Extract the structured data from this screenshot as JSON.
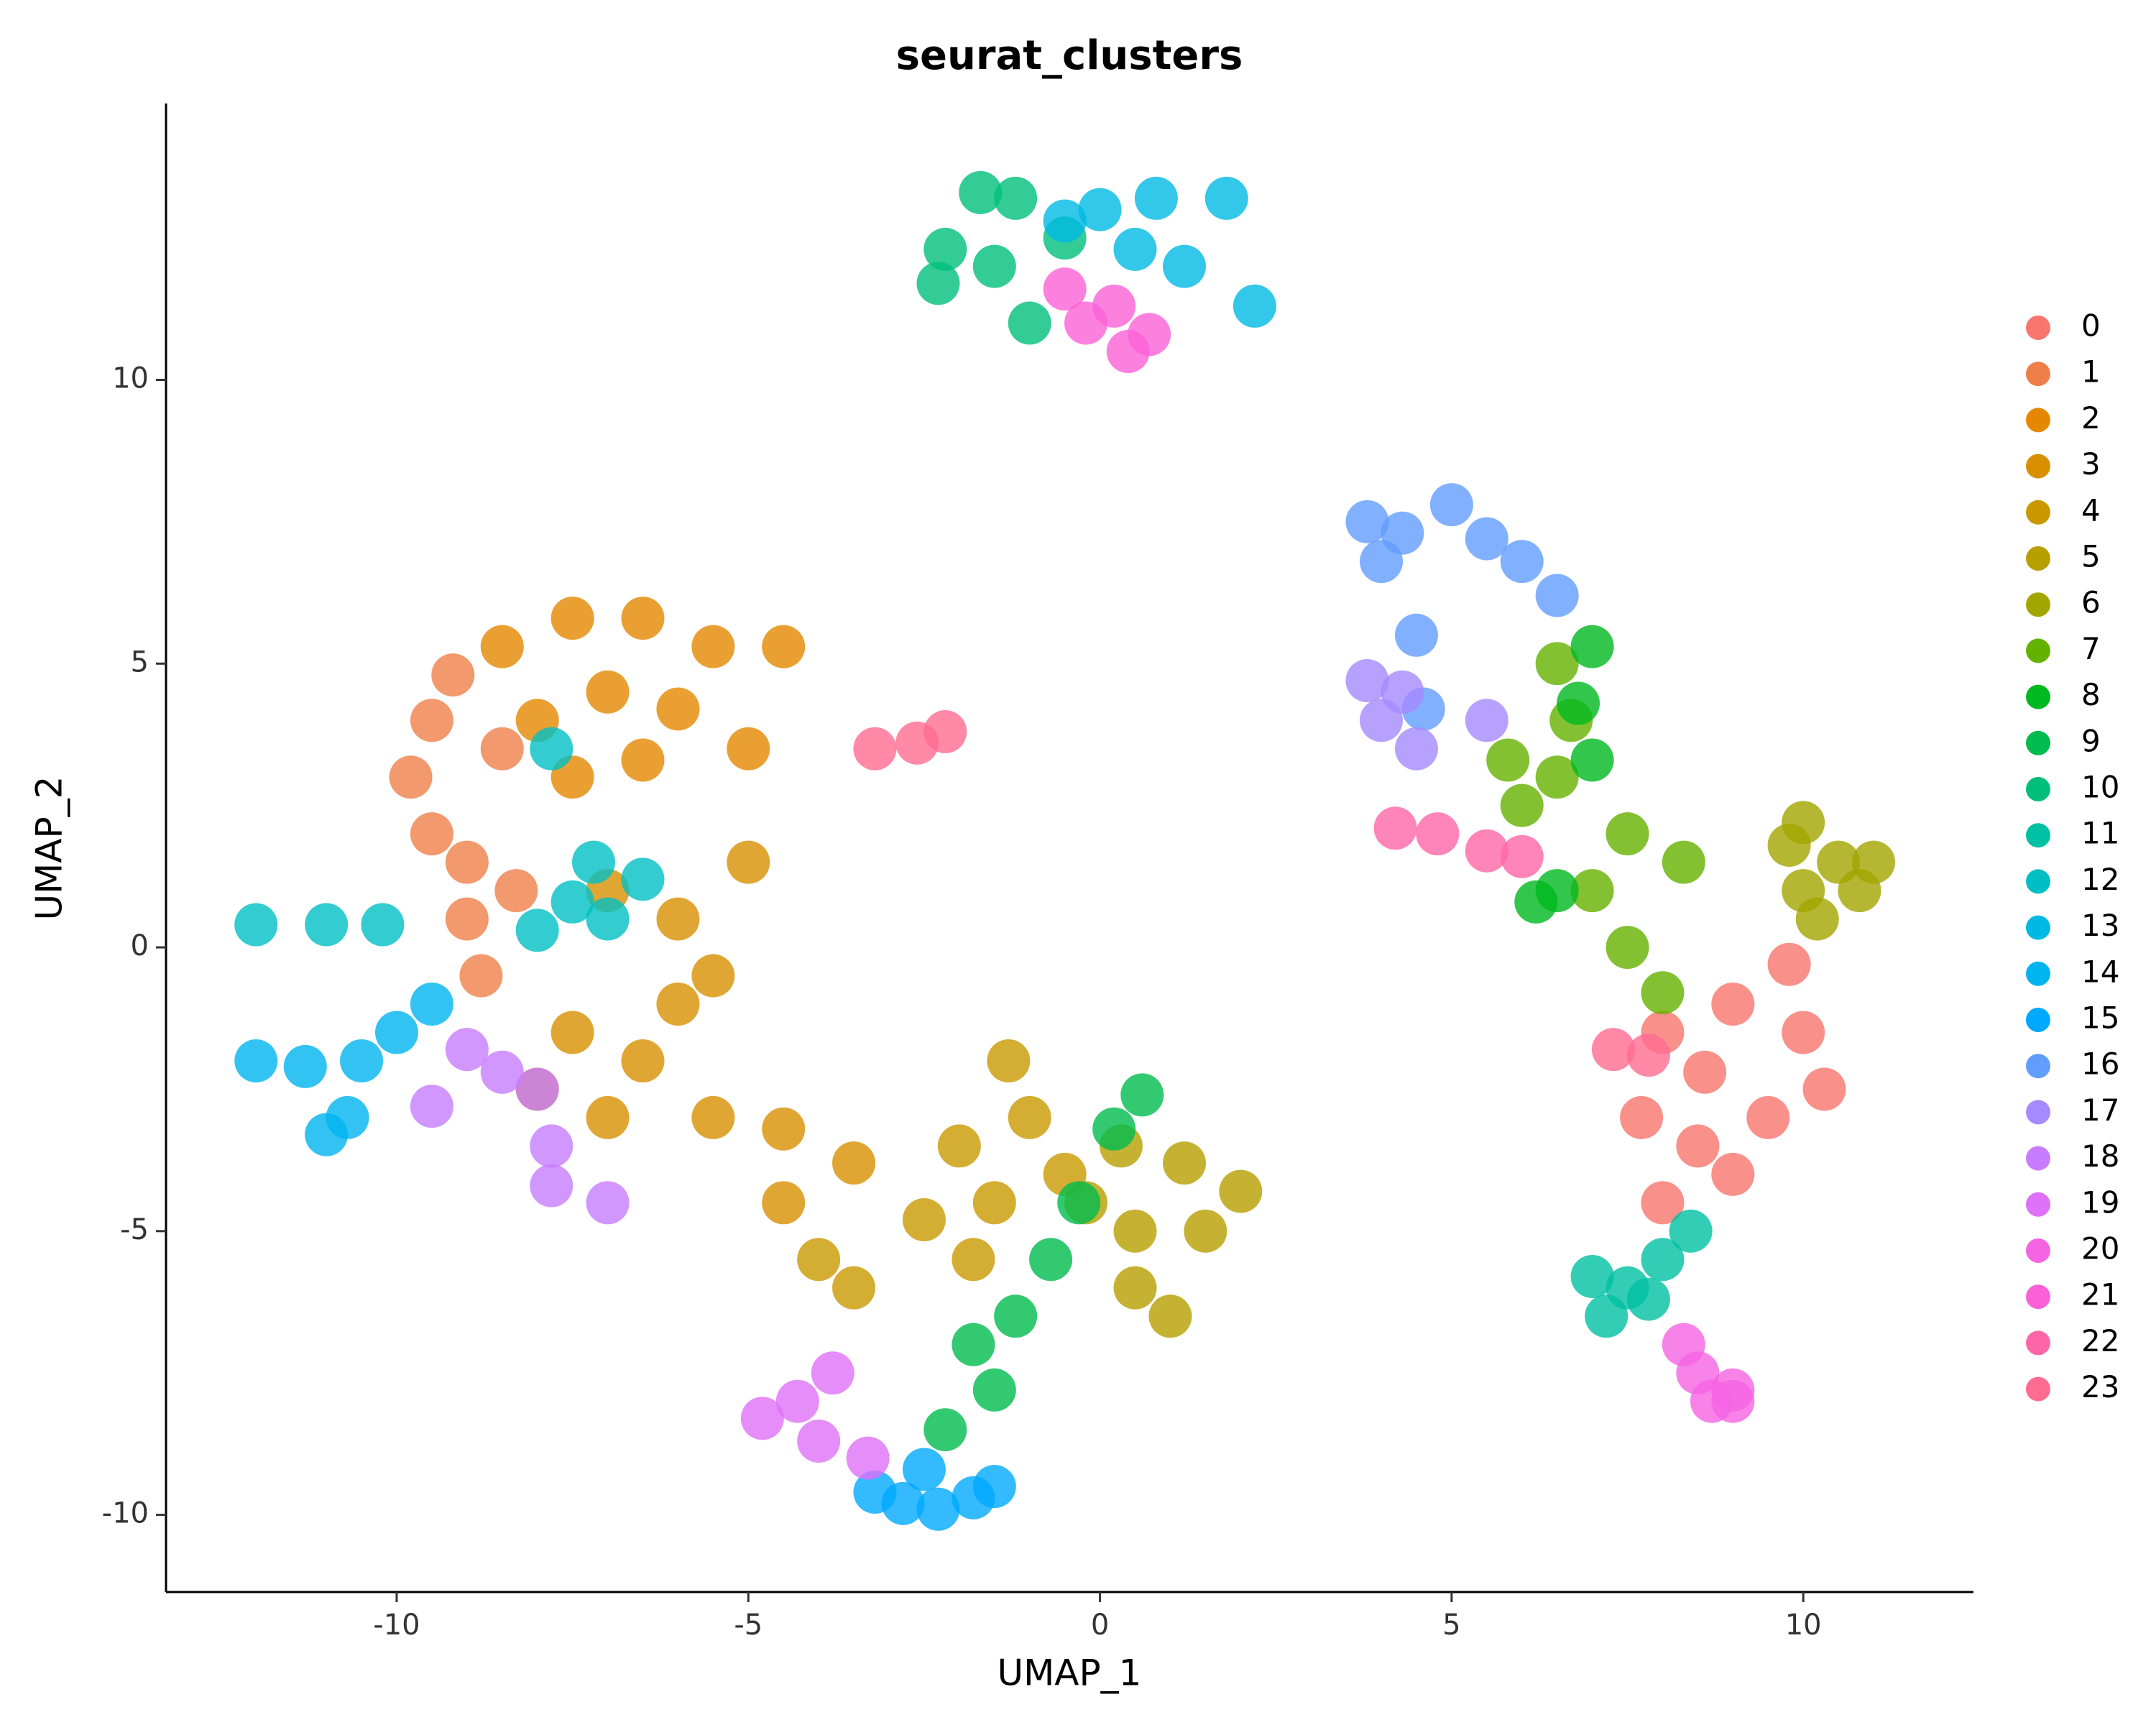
{
  "chart_data": {
    "type": "scatter",
    "title": "seurat_clusters",
    "x_label": "UMAP_1",
    "y_label": "UMAP_2",
    "xlim": [
      -13.28,
      12.42
    ],
    "ylim": [
      -11.36,
      14.87
    ],
    "xticks": [
      -10,
      -5,
      0,
      5,
      10
    ],
    "yticks": [
      -10,
      -5,
      0,
      5,
      10
    ],
    "grid": false,
    "legend": "right",
    "series": [
      {
        "name": "0",
        "color": "#F8766D",
        "x": [
          8.0,
          9.0,
          10.0,
          10.3,
          9.5,
          8.5,
          7.7,
          8.0,
          9.0,
          9.8,
          8.6
        ],
        "y": [
          -1.5,
          -1.0,
          -1.5,
          -2.5,
          -3.0,
          -3.5,
          -3.0,
          -4.5,
          -4.0,
          -0.3,
          -2.2
        ]
      },
      {
        "name": "1",
        "color": "#EF7F49",
        "x": [
          -9.5,
          -9.8,
          -9.5,
          -9.0,
          -9.0,
          -8.8,
          -9.2,
          -8.5,
          -8.3
        ],
        "y": [
          4.0,
          3.0,
          2.0,
          1.5,
          0.5,
          -0.5,
          4.8,
          3.5,
          1.0
        ]
      },
      {
        "name": "2",
        "color": "#E58700",
        "x": [
          -8.5,
          -7.5,
          -6.5,
          -5.5,
          -7.0,
          -6.0,
          -8.0,
          -5.0,
          -6.5,
          -7.5,
          -4.5
        ],
        "y": [
          5.3,
          5.8,
          5.8,
          5.3,
          4.5,
          4.2,
          4.0,
          3.5,
          3.3,
          3.0,
          5.3
        ]
      },
      {
        "name": "3",
        "color": "#D89000",
        "x": [
          -7.0,
          -6.0,
          -5.0,
          -5.5,
          -7.5,
          -6.5,
          -7.0,
          -5.5,
          -4.5,
          -3.5,
          -4.5,
          -6.0,
          -8.0
        ],
        "y": [
          1.0,
          0.5,
          1.5,
          -0.5,
          -1.5,
          -2.0,
          -3.0,
          -3.0,
          -3.2,
          -3.8,
          -4.5,
          -1.0,
          -2.5
        ]
      },
      {
        "name": "4",
        "color": "#C99800",
        "x": [
          -1.3,
          -1.0,
          -2.0,
          -1.5,
          -2.5,
          -3.5,
          -4.0,
          -0.5,
          -1.8
        ],
        "y": [
          -2.0,
          -3.0,
          -3.5,
          -4.5,
          -4.8,
          -6.0,
          -5.5,
          -4.0,
          -5.5
        ]
      },
      {
        "name": "5",
        "color": "#B79F00",
        "x": [
          0.3,
          1.2,
          2.0,
          0.5,
          0.5,
          1.0,
          -0.2,
          1.5
        ],
        "y": [
          -3.5,
          -3.8,
          -4.3,
          -5.0,
          -6.0,
          -6.5,
          -4.5,
          -5.0
        ]
      },
      {
        "name": "6",
        "color": "#A3A500",
        "x": [
          10.0,
          10.5,
          10.0,
          10.8,
          9.8,
          10.2,
          11.0
        ],
        "y": [
          2.2,
          1.5,
          1.0,
          1.0,
          1.8,
          0.5,
          1.5
        ]
      },
      {
        "name": "7",
        "color": "#64B200",
        "x": [
          6.5,
          6.7,
          6.5,
          6.0,
          7.5,
          8.3,
          7.0,
          7.5,
          8.0,
          5.8
        ],
        "y": [
          5.0,
          4.0,
          3.0,
          2.5,
          2.0,
          1.5,
          1.0,
          0.0,
          -0.8,
          3.3
        ]
      },
      {
        "name": "8",
        "color": "#00B81F",
        "x": [
          7.0,
          6.8,
          7.0,
          6.5,
          6.2
        ],
        "y": [
          5.3,
          4.3,
          3.3,
          1.0,
          0.8
        ]
      },
      {
        "name": "9",
        "color": "#00BB4E",
        "x": [
          -1.8,
          -1.5,
          -1.2,
          -0.7,
          -0.3,
          0.2,
          0.6,
          -2.2
        ],
        "y": [
          -7.0,
          -7.8,
          -6.5,
          -5.5,
          -4.5,
          -3.2,
          -2.6,
          -8.5
        ]
      },
      {
        "name": "10",
        "color": "#00BF7D",
        "x": [
          -1.7,
          -1.2,
          -2.2,
          -1.5,
          -2.3,
          -1.0,
          -0.5
        ],
        "y": [
          13.3,
          13.2,
          12.3,
          12.0,
          11.7,
          11.0,
          12.5
        ]
      },
      {
        "name": "11",
        "color": "#00C1A3",
        "x": [
          7.5,
          7.2,
          8.0,
          7.8,
          8.4,
          7.0
        ],
        "y": [
          -6.0,
          -6.5,
          -5.5,
          -6.2,
          -5.0,
          -5.8
        ]
      },
      {
        "name": "12",
        "color": "#00BFC4",
        "x": [
          -7.5,
          -7.0,
          -7.2,
          -6.5,
          -8.0,
          -12.0,
          -11.0,
          -10.2,
          -7.8
        ],
        "y": [
          0.8,
          0.5,
          1.5,
          1.2,
          0.3,
          0.4,
          0.4,
          0.4,
          3.5
        ]
      },
      {
        "name": "13",
        "color": "#00B9E3",
        "x": [
          0.0,
          0.8,
          1.8,
          0.5,
          1.2,
          2.2,
          -0.5
        ],
        "y": [
          13.0,
          13.2,
          13.2,
          12.3,
          12.0,
          11.3,
          12.8
        ]
      },
      {
        "name": "14",
        "color": "#00B4F0",
        "x": [
          -12.0,
          -11.3,
          -10.5,
          -10.0,
          -9.5,
          -10.7,
          -11.0
        ],
        "y": [
          -2.0,
          -2.1,
          -2.0,
          -1.5,
          -1.0,
          -3.0,
          -3.3
        ]
      },
      {
        "name": "15",
        "color": "#00A9FF",
        "x": [
          -3.2,
          -2.8,
          -2.3,
          -1.8,
          -1.5,
          -2.5
        ],
        "y": [
          -9.6,
          -9.8,
          -9.9,
          -9.7,
          -9.5,
          -9.2
        ]
      },
      {
        "name": "16",
        "color": "#619CFF",
        "x": [
          3.8,
          4.3,
          5.0,
          5.5,
          4.0,
          6.0,
          6.5,
          4.5,
          4.6
        ],
        "y": [
          7.5,
          7.3,
          7.8,
          7.2,
          6.8,
          6.8,
          6.2,
          5.5,
          4.2
        ]
      },
      {
        "name": "17",
        "color": "#A58AFF",
        "x": [
          3.8,
          4.3,
          4.0,
          4.5,
          5.5
        ],
        "y": [
          4.7,
          4.5,
          4.0,
          3.5,
          4.0
        ]
      },
      {
        "name": "18",
        "color": "#C77CFF",
        "x": [
          -9.0,
          -8.5,
          -9.5,
          -8.0,
          -7.8,
          -7.8,
          -7.0
        ],
        "y": [
          -1.8,
          -2.2,
          -2.8,
          -2.5,
          -3.5,
          -4.2,
          -4.5
        ]
      },
      {
        "name": "19",
        "color": "#DF70F8",
        "x": [
          -4.8,
          -4.3,
          -3.8,
          -4.0,
          -3.3
        ],
        "y": [
          -8.3,
          -8.0,
          -7.5,
          -8.7,
          -9.0
        ]
      },
      {
        "name": "20",
        "color": "#F564E3",
        "x": [
          8.5,
          9.0,
          9.0,
          8.3,
          8.7
        ],
        "y": [
          -7.5,
          -7.8,
          -8.0,
          -7.0,
          -8.0
        ]
      },
      {
        "name": "21",
        "color": "#FB61D7",
        "x": [
          -0.5,
          0.2,
          0.7,
          0.4,
          -0.2
        ],
        "y": [
          11.6,
          11.3,
          10.8,
          10.5,
          11.0
        ]
      },
      {
        "name": "22",
        "color": "#FF66A8",
        "x": [
          4.2,
          4.8,
          5.5,
          6.0
        ],
        "y": [
          2.1,
          2.0,
          1.7,
          1.6
        ]
      },
      {
        "name": "23",
        "color": "#FF6C91",
        "x": [
          -3.2,
          -2.6,
          -2.2,
          7.3,
          7.8
        ],
        "y": [
          3.5,
          3.6,
          3.8,
          -1.8,
          -1.9
        ]
      }
    ]
  }
}
